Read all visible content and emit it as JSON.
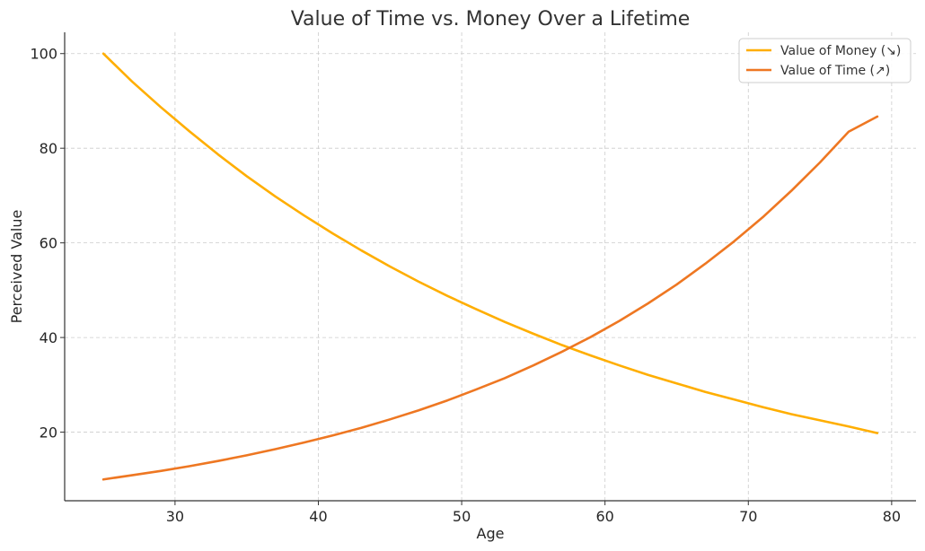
{
  "chart_data": {
    "type": "line",
    "title": "Value of Time vs. Money Over a Lifetime",
    "xlabel": "Age",
    "ylabel": "Perceived Value",
    "xlim": [
      22.3,
      81.7
    ],
    "ylim": [
      5.5,
      104.5
    ],
    "xticks": [
      30,
      40,
      50,
      60,
      70,
      80
    ],
    "yticks": [
      20,
      40,
      60,
      80,
      100
    ],
    "grid": true,
    "legend_position": "top-right",
    "x": [
      25,
      27,
      29,
      31,
      33,
      35,
      37,
      39,
      41,
      43,
      45,
      47,
      49,
      51,
      53,
      55,
      57,
      59,
      61,
      63,
      65,
      67,
      69,
      71,
      73,
      75,
      77,
      79
    ],
    "series": [
      {
        "name": "Value of Money (↘)",
        "color": "#ffae00",
        "values": [
          100,
          94.1,
          88.7,
          83.6,
          78.7,
          74.1,
          69.8,
          65.8,
          62.0,
          58.4,
          55.0,
          51.8,
          48.8,
          46.0,
          43.3,
          40.8,
          38.4,
          36.2,
          34.1,
          32.1,
          30.3,
          28.5,
          26.9,
          25.3,
          23.8,
          22.5,
          21.2,
          19.8
        ]
      },
      {
        "name": "Value of Time (↗)",
        "color": "#ee7722",
        "values": [
          10.0,
          10.9,
          11.8,
          12.8,
          13.9,
          15.1,
          16.4,
          17.8,
          19.3,
          20.9,
          22.7,
          24.6,
          26.7,
          29.0,
          31.4,
          34.1,
          37.0,
          40.1,
          43.5,
          47.2,
          51.2,
          55.6,
          60.3,
          65.4,
          71.0,
          77.0,
          83.5,
          86.7
        ]
      }
    ]
  }
}
